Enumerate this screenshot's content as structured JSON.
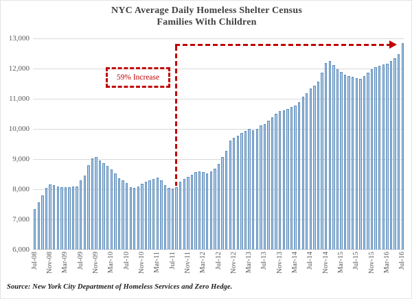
{
  "title": {
    "line1": "NYC Average Daily Homeless Shelter Census",
    "line2": "Families With Children"
  },
  "annotation": {
    "label": "59% Increase"
  },
  "source": "Source:  New York City Department of Homeless Services and Zero Hedge.",
  "colors": {
    "bar_fill": "#aecbe7",
    "bar_border": "#5a8ab8",
    "annotation_red": "#c00000",
    "gridline": "#d9d9d9",
    "axis_text": "#595959",
    "title_text": "#404040"
  },
  "chart_data": {
    "type": "bar",
    "title": "NYC Average Daily Homeless Shelter Census — Families With Children",
    "ylim": [
      6000,
      13000
    ],
    "ytick_step": 1000,
    "ytick_labels": [
      "13,000",
      "12,000",
      "11,000",
      "10,000",
      "9,000",
      "8,000",
      "7,000",
      "6,000"
    ],
    "xtick_every": 4,
    "xtick_labels": [
      "Jul-08",
      "Nov-08",
      "Mar-09",
      "Jul-09",
      "Nov-09",
      "Mar-10",
      "Jul-10",
      "Nov-10",
      "Mar-11",
      "Jul-11",
      "Nov-11",
      "Mar-12",
      "Jul-12",
      "Nov-12",
      "Mar-13",
      "Jul-13",
      "Nov-13",
      "Mar-14",
      "Jul-14",
      "Nov-14",
      "Mar-15",
      "Jul-15",
      "Nov-15",
      "Mar-16",
      "Jul-16"
    ],
    "grid": true,
    "legend": false,
    "categories": [
      "Jul-08",
      "Aug-08",
      "Sep-08",
      "Oct-08",
      "Nov-08",
      "Dec-08",
      "Jan-09",
      "Feb-09",
      "Mar-09",
      "Apr-09",
      "May-09",
      "Jun-09",
      "Jul-09",
      "Aug-09",
      "Sep-09",
      "Oct-09",
      "Nov-09",
      "Dec-09",
      "Jan-10",
      "Feb-10",
      "Mar-10",
      "Apr-10",
      "May-10",
      "Jun-10",
      "Jul-10",
      "Aug-10",
      "Sep-10",
      "Oct-10",
      "Nov-10",
      "Dec-10",
      "Jan-11",
      "Feb-11",
      "Mar-11",
      "Apr-11",
      "May-11",
      "Jun-11",
      "Jul-11",
      "Aug-11",
      "Sep-11",
      "Oct-11",
      "Nov-11",
      "Dec-11",
      "Jan-12",
      "Feb-12",
      "Mar-12",
      "Apr-12",
      "May-12",
      "Jun-12",
      "Jul-12",
      "Aug-12",
      "Sep-12",
      "Oct-12",
      "Nov-12",
      "Dec-12",
      "Jan-13",
      "Feb-13",
      "Mar-13",
      "Apr-13",
      "May-13",
      "Jun-13",
      "Jul-13",
      "Aug-13",
      "Sep-13",
      "Oct-13",
      "Nov-13",
      "Dec-13",
      "Jan-14",
      "Feb-14",
      "Mar-14",
      "Apr-14",
      "May-14",
      "Jun-14",
      "Jul-14",
      "Aug-14",
      "Sep-14",
      "Oct-14",
      "Nov-14",
      "Dec-14",
      "Jan-15",
      "Feb-15",
      "Mar-15",
      "Apr-15",
      "May-15",
      "Jun-15",
      "Jul-15",
      "Aug-15",
      "Sep-15",
      "Oct-15",
      "Nov-15",
      "Dec-15",
      "Jan-16",
      "Feb-16",
      "Mar-16",
      "Apr-16",
      "May-16",
      "Jun-16",
      "Jul-16"
    ],
    "values": [
      7340,
      7560,
      7800,
      8040,
      8150,
      8140,
      8100,
      8070,
      8060,
      8060,
      8080,
      8100,
      8290,
      8450,
      8790,
      9020,
      9060,
      8950,
      8860,
      8780,
      8670,
      8520,
      8360,
      8290,
      8210,
      8060,
      8040,
      8100,
      8180,
      8250,
      8290,
      8350,
      8380,
      8290,
      8140,
      8050,
      8020,
      8060,
      8250,
      8330,
      8400,
      8470,
      8560,
      8600,
      8570,
      8530,
      8600,
      8680,
      8840,
      9060,
      9280,
      9620,
      9700,
      9780,
      9860,
      9930,
      10000,
      9960,
      10010,
      10120,
      10170,
      10270,
      10390,
      10500,
      10580,
      10620,
      10660,
      10730,
      10770,
      10880,
      11070,
      11180,
      11330,
      11440,
      11560,
      11870,
      12190,
      12260,
      12110,
      11970,
      11890,
      11800,
      11760,
      11730,
      11680,
      11650,
      11740,
      11860,
      11970,
      12050,
      12090,
      12130,
      12170,
      12250,
      12350,
      12470,
      12850
    ]
  }
}
